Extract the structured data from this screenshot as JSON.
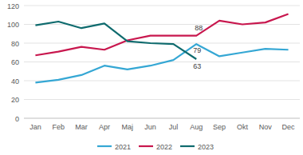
{
  "chart_data": {
    "type": "line",
    "categories": [
      "Jan",
      "Feb",
      "Mar",
      "Apr",
      "Maj",
      "Jun",
      "Jul",
      "Aug",
      "Sep",
      "Okt",
      "Nov",
      "Dec"
    ],
    "series": [
      {
        "name": "2021",
        "color": "#35a7d4",
        "values": [
          38,
          41,
          46,
          56,
          52,
          56,
          62,
          79,
          66,
          70,
          74,
          73
        ]
      },
      {
        "name": "2022",
        "color": "#c8174e",
        "values": [
          67,
          71,
          76,
          73,
          83,
          88,
          88,
          88,
          104,
          100,
          102,
          111
        ]
      },
      {
        "name": "2023",
        "color": "#0f6b6e",
        "values": [
          99,
          103,
          96,
          101,
          82,
          80,
          79,
          63,
          null,
          null,
          null,
          null
        ]
      }
    ],
    "annotations": [
      {
        "text": "88",
        "series": 1,
        "index": 7
      },
      {
        "text": "79",
        "series": 0,
        "index": 7
      },
      {
        "text": "63",
        "series": 2,
        "index": 7
      }
    ],
    "ylim": [
      0,
      120
    ],
    "yticks": [
      0,
      20,
      40,
      60,
      80,
      100,
      120
    ],
    "grid": true,
    "legend": "bottom"
  }
}
